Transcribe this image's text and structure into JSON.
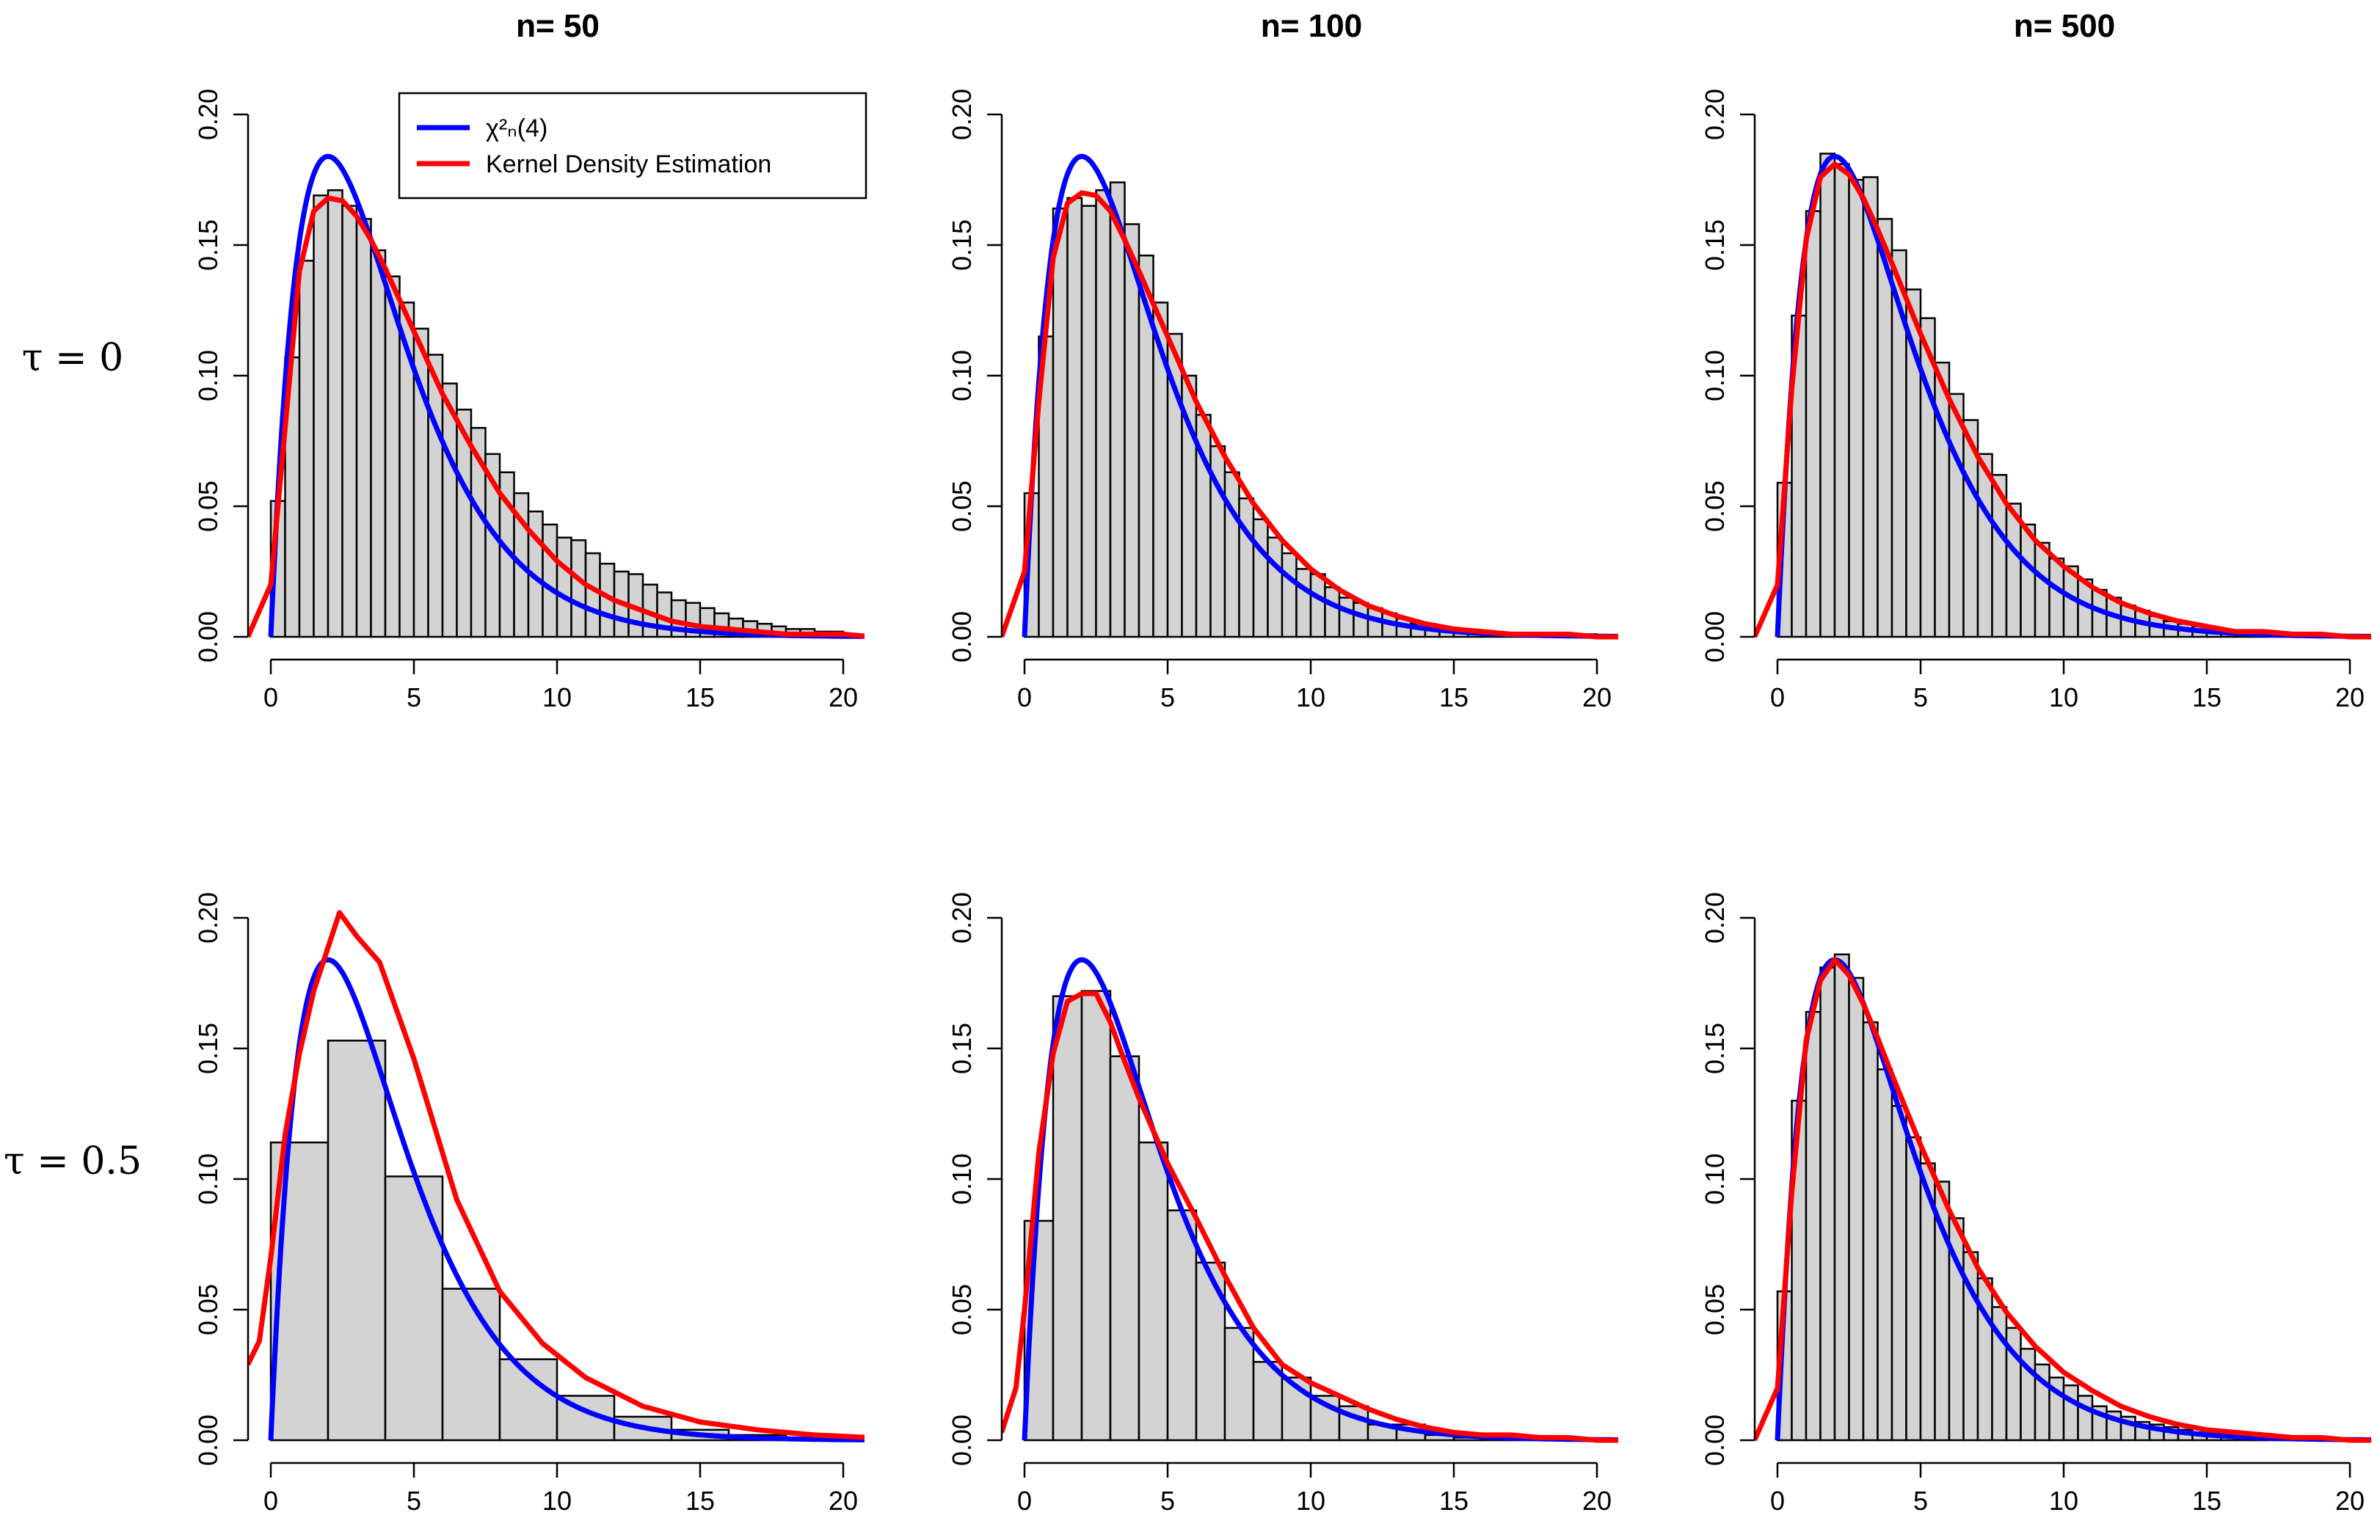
{
  "figure": {
    "row_labels": [
      "τ = 0",
      "τ = 0.5"
    ],
    "legend_entries": [
      {
        "name": "χ²ₙ(4)",
        "color": "#0000ff"
      },
      {
        "name": "Kernel Density Estimation",
        "color": "#ff0000"
      }
    ]
  },
  "chart_data": [
    {
      "type": "bar",
      "panel": "tau0-n50",
      "title": "n= 50",
      "xlim": [
        0,
        20
      ],
      "ylim": [
        0,
        0.2
      ],
      "xticks": [
        "0",
        "5",
        "10",
        "15",
        "20"
      ],
      "yticks": [
        "0.00",
        "0.05",
        "0.10",
        "0.15",
        "0.20"
      ],
      "bin_width": 0.5,
      "values": [
        0.052,
        0.107,
        0.144,
        0.169,
        0.171,
        0.165,
        0.16,
        0.148,
        0.138,
        0.128,
        0.118,
        0.108,
        0.097,
        0.087,
        0.08,
        0.07,
        0.063,
        0.055,
        0.048,
        0.043,
        0.038,
        0.037,
        0.032,
        0.028,
        0.025,
        0.024,
        0.02,
        0.017,
        0.014,
        0.013,
        0.011,
        0.009,
        0.007,
        0.006,
        0.005,
        0.004,
        0.003,
        0.003,
        0.002,
        0.002
      ],
      "kde": {
        "x": [
          -0.8,
          0,
          0.5,
          1,
          1.5,
          2,
          2.5,
          3,
          3.5,
          4,
          5,
          6,
          7,
          8,
          9,
          10,
          11,
          12,
          13,
          14,
          15,
          16,
          17,
          18,
          19,
          20,
          21
        ],
        "y": [
          0,
          0.02,
          0.08,
          0.14,
          0.163,
          0.168,
          0.167,
          0.161,
          0.152,
          0.141,
          0.117,
          0.093,
          0.073,
          0.055,
          0.041,
          0.029,
          0.02,
          0.014,
          0.01,
          0.006,
          0.004,
          0.003,
          0.002,
          0.001,
          0.001,
          0.001,
          0
        ]
      }
    },
    {
      "type": "bar",
      "panel": "tau0-n100",
      "title": "n= 100",
      "xlim": [
        0,
        20
      ],
      "ylim": [
        0,
        0.2
      ],
      "xticks": [
        "0",
        "5",
        "10",
        "15",
        "20"
      ],
      "yticks": [
        "0.00",
        "0.05",
        "0.10",
        "0.15",
        "0.20"
      ],
      "bin_width": 0.5,
      "values": [
        0.055,
        0.115,
        0.164,
        0.168,
        0.165,
        0.171,
        0.174,
        0.158,
        0.146,
        0.128,
        0.116,
        0.1,
        0.085,
        0.073,
        0.063,
        0.053,
        0.045,
        0.038,
        0.032,
        0.026,
        0.024,
        0.019,
        0.015,
        0.013,
        0.011,
        0.009,
        0.007,
        0.005,
        0.004,
        0.003,
        0.002,
        0.002,
        0.002,
        0.001,
        0.001,
        0.001,
        0.001,
        0.001,
        0.001,
        0.001
      ],
      "kde": {
        "x": [
          -0.8,
          0,
          0.5,
          1,
          1.5,
          2,
          2.5,
          3,
          3.5,
          4,
          5,
          6,
          7,
          8,
          9,
          10,
          11,
          12,
          13,
          14,
          15,
          16,
          17,
          18,
          19,
          20,
          21
        ],
        "y": [
          0,
          0.025,
          0.09,
          0.145,
          0.166,
          0.17,
          0.169,
          0.163,
          0.152,
          0.14,
          0.115,
          0.09,
          0.069,
          0.051,
          0.037,
          0.026,
          0.018,
          0.012,
          0.008,
          0.005,
          0.003,
          0.002,
          0.001,
          0.001,
          0.001,
          0,
          0
        ]
      }
    },
    {
      "type": "bar",
      "panel": "tau0-n500",
      "title": "n= 500",
      "xlim": [
        0,
        20
      ],
      "ylim": [
        0,
        0.2
      ],
      "xticks": [
        "0",
        "5",
        "10",
        "15",
        "20"
      ],
      "yticks": [
        "0.00",
        "0.05",
        "0.10",
        "0.15",
        "0.20"
      ],
      "bin_width": 0.5,
      "values": [
        0.059,
        0.123,
        0.163,
        0.185,
        0.181,
        0.175,
        0.176,
        0.16,
        0.148,
        0.133,
        0.122,
        0.105,
        0.093,
        0.083,
        0.07,
        0.062,
        0.051,
        0.043,
        0.036,
        0.03,
        0.027,
        0.022,
        0.018,
        0.015,
        0.012,
        0.01,
        0.008,
        0.006,
        0.005,
        0.004,
        0.003,
        0.002,
        0.002,
        0.001,
        0.001,
        0.001,
        0.001,
        0.001,
        0,
        0
      ],
      "kde": {
        "x": [
          -0.8,
          0,
          0.5,
          1,
          1.5,
          2,
          2.5,
          3,
          3.5,
          4,
          5,
          6,
          7,
          8,
          9,
          10,
          11,
          12,
          13,
          14,
          15,
          16,
          17,
          18,
          19,
          20,
          21
        ],
        "y": [
          0,
          0.02,
          0.095,
          0.152,
          0.176,
          0.181,
          0.177,
          0.168,
          0.156,
          0.143,
          0.116,
          0.091,
          0.069,
          0.051,
          0.037,
          0.027,
          0.019,
          0.013,
          0.009,
          0.006,
          0.004,
          0.002,
          0.002,
          0.001,
          0.001,
          0,
          0
        ]
      }
    },
    {
      "type": "bar",
      "panel": "tau05-n50",
      "title": "n= 50",
      "xlim": [
        0,
        20
      ],
      "ylim": [
        0,
        0.2
      ],
      "xticks": [
        "0",
        "5",
        "10",
        "15",
        "20"
      ],
      "yticks": [
        "0.00",
        "0.05",
        "0.10",
        "0.15",
        "0.20"
      ],
      "bin_width": 2,
      "values": [
        0.114,
        0.153,
        0.101,
        0.058,
        0.031,
        0.017,
        0.009,
        0.004,
        0.002,
        0.001
      ],
      "kde": {
        "x": [
          -0.8,
          -0.4,
          0,
          0.5,
          1,
          1.5,
          2.4,
          3,
          3.8,
          5,
          6.5,
          8,
          9.5,
          11,
          13,
          15,
          17,
          19,
          21
        ],
        "y": [
          0.029,
          0.038,
          0.07,
          0.117,
          0.148,
          0.172,
          0.202,
          0.193,
          0.183,
          0.146,
          0.092,
          0.057,
          0.037,
          0.024,
          0.013,
          0.007,
          0.004,
          0.002,
          0.001
        ]
      }
    },
    {
      "type": "bar",
      "panel": "tau05-n100",
      "title": "n= 100",
      "xlim": [
        0,
        20
      ],
      "ylim": [
        0,
        0.2
      ],
      "xticks": [
        "0",
        "5",
        "10",
        "15",
        "20"
      ],
      "yticks": [
        "0.00",
        "0.05",
        "0.10",
        "0.15",
        "0.20"
      ],
      "bin_width": 1,
      "values": [
        0.084,
        0.17,
        0.172,
        0.147,
        0.114,
        0.088,
        0.068,
        0.043,
        0.03,
        0.024,
        0.017,
        0.013,
        0.006,
        0.006,
        0.002,
        0.001,
        0.001,
        0.001,
        0,
        0
      ],
      "kde": {
        "x": [
          -0.8,
          -0.3,
          0,
          0.5,
          1,
          1.5,
          2,
          2.5,
          3,
          3.5,
          4,
          5,
          6,
          7,
          8,
          9,
          10,
          11,
          12,
          13,
          14,
          15,
          16,
          17,
          18,
          19,
          20,
          21
        ],
        "y": [
          0.003,
          0.02,
          0.05,
          0.11,
          0.148,
          0.168,
          0.171,
          0.171,
          0.16,
          0.145,
          0.131,
          0.106,
          0.085,
          0.063,
          0.043,
          0.029,
          0.022,
          0.017,
          0.012,
          0.008,
          0.005,
          0.003,
          0.002,
          0.002,
          0.001,
          0.001,
          0,
          0
        ]
      }
    },
    {
      "type": "bar",
      "panel": "tau05-n500",
      "title": "n= 500",
      "xlim": [
        0,
        20
      ],
      "ylim": [
        0,
        0.2
      ],
      "xticks": [
        "0",
        "5",
        "10",
        "15",
        "20"
      ],
      "yticks": [
        "0.00",
        "0.05",
        "0.10",
        "0.15",
        "0.20"
      ],
      "bin_width": 0.5,
      "values": [
        0.057,
        0.13,
        0.164,
        0.181,
        0.186,
        0.177,
        0.16,
        0.142,
        0.128,
        0.116,
        0.106,
        0.099,
        0.085,
        0.072,
        0.062,
        0.051,
        0.043,
        0.035,
        0.029,
        0.024,
        0.021,
        0.017,
        0.013,
        0.011,
        0.009,
        0.007,
        0.006,
        0.005,
        0.004,
        0.003,
        0.002,
        0.002,
        0.001,
        0.001,
        0.001,
        0.001,
        0,
        0,
        0,
        0
      ],
      "kde": {
        "x": [
          -0.8,
          0,
          0.5,
          1,
          1.5,
          2,
          2.5,
          3,
          3.5,
          4,
          5,
          6,
          7,
          8,
          9,
          10,
          11,
          12,
          13,
          14,
          15,
          16,
          17,
          18,
          19,
          20,
          21
        ],
        "y": [
          0,
          0.02,
          0.095,
          0.153,
          0.176,
          0.184,
          0.178,
          0.167,
          0.154,
          0.14,
          0.113,
          0.088,
          0.066,
          0.049,
          0.036,
          0.026,
          0.019,
          0.013,
          0.009,
          0.006,
          0.004,
          0.003,
          0.002,
          0.001,
          0.001,
          0,
          0
        ]
      }
    }
  ]
}
